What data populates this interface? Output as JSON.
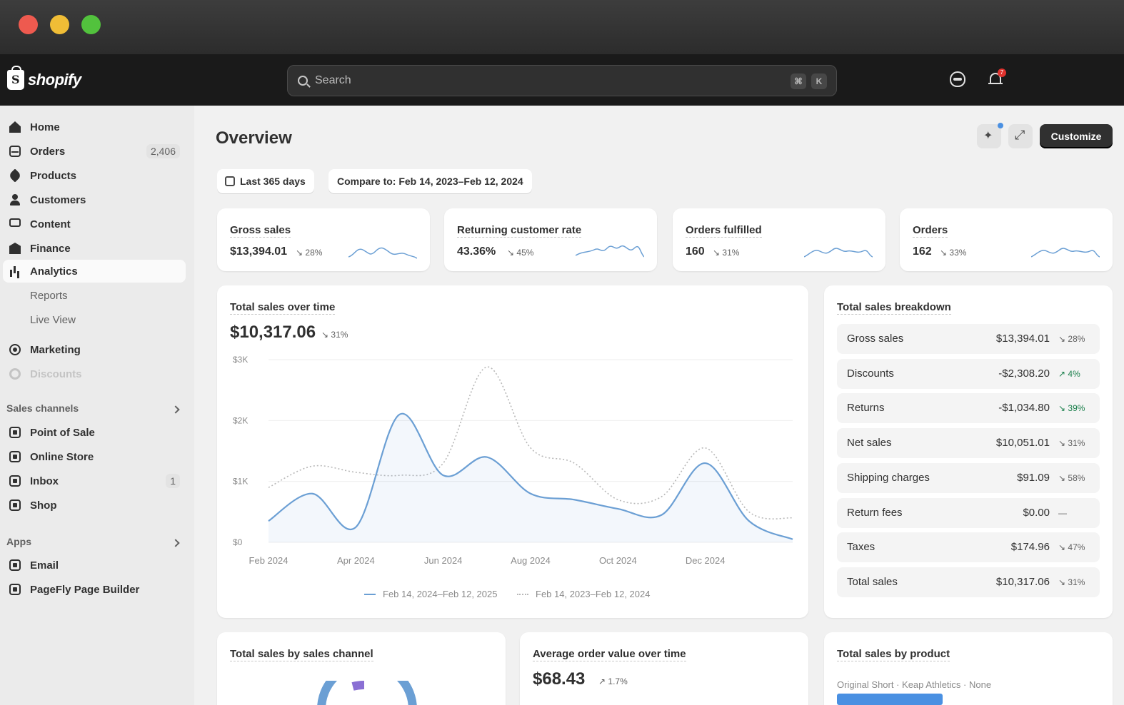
{
  "window": {
    "title": ""
  },
  "topbar": {
    "brand": "shopify",
    "search_placeholder": "Search",
    "shortcut_cmd": "⌘",
    "shortcut_key": "K",
    "notification_count": "7"
  },
  "sidebar": {
    "items": [
      {
        "label": "Home",
        "icon": "home-icon"
      },
      {
        "label": "Orders",
        "icon": "orders-icon",
        "count": "2,406"
      },
      {
        "label": "Products",
        "icon": "tag-icon"
      },
      {
        "label": "Customers",
        "icon": "person-icon"
      },
      {
        "label": "Content",
        "icon": "monitor-icon"
      },
      {
        "label": "Finance",
        "icon": "bank-icon"
      },
      {
        "label": "Analytics",
        "icon": "chart-icon"
      },
      {
        "label": "Reports"
      },
      {
        "label": "Live View"
      },
      {
        "label": "Marketing",
        "icon": "target-icon"
      },
      {
        "label": "Discounts",
        "icon": "gear-icon"
      }
    ],
    "sales_channels_label": "Sales channels",
    "channels": [
      {
        "label": "Point of Sale"
      },
      {
        "label": "Online Store"
      },
      {
        "label": "Inbox",
        "count": "1"
      },
      {
        "label": "Shop"
      }
    ],
    "apps_label": "Apps",
    "apps": [
      {
        "label": "Email"
      },
      {
        "label": "PageFly Page Builder"
      }
    ]
  },
  "main": {
    "title": "Overview",
    "customize_label": "Customize",
    "date_range": "Last 365 days",
    "compare": "Compare to: Feb 14, 2023–Feb 12, 2024",
    "metrics": [
      {
        "title": "Gross sales",
        "value": "$13,394.01",
        "delta": "↘ 28%"
      },
      {
        "title": "Returning customer rate",
        "value": "43.36%",
        "delta": "↘ 45%"
      },
      {
        "title": "Orders fulfilled",
        "value": "160",
        "delta": "↘ 31%"
      },
      {
        "title": "Orders",
        "value": "162",
        "delta": "↘ 33%"
      }
    ],
    "sales_over_time": {
      "title": "Total sales over time",
      "value": "$10,317.06",
      "delta": "↘ 31%",
      "legend_current": "Feb 14, 2024–Feb 12, 2025",
      "legend_previous": "Feb 14, 2023–Feb 12, 2024"
    },
    "breakdown": {
      "title": "Total sales breakdown",
      "rows": [
        {
          "label": "Gross sales",
          "value": "$13,394.01",
          "delta": "↘ 28%",
          "color": "gray"
        },
        {
          "label": "Discounts",
          "value": "-$2,308.20",
          "delta": "↗ 4%",
          "color": "green"
        },
        {
          "label": "Returns",
          "value": "-$1,034.80",
          "delta": "↘ 39%",
          "color": "green"
        },
        {
          "label": "Net sales",
          "value": "$10,051.01",
          "delta": "↘ 31%",
          "color": "gray"
        },
        {
          "label": "Shipping charges",
          "value": "$91.09",
          "delta": "↘ 58%",
          "color": "gray"
        },
        {
          "label": "Return fees",
          "value": "$0.00",
          "delta": "—",
          "color": "gray"
        },
        {
          "label": "Taxes",
          "value": "$174.96",
          "delta": "↘ 47%",
          "color": "gray"
        },
        {
          "label": "Total sales",
          "value": "$10,317.06",
          "delta": "↘ 31%",
          "color": "gray"
        }
      ]
    },
    "by_channel": {
      "title": "Total sales by sales channel"
    },
    "avg_order": {
      "title": "Average order value over time",
      "value": "$68.43",
      "delta": "↗ 1.7%"
    },
    "by_product": {
      "title": "Total sales by product",
      "first_item": "Original Short · Keap Athletics · None"
    }
  },
  "colors": {
    "accent": "#4a90e2",
    "current_series": "#6b9fd4",
    "previous_series": "#b8b8b8"
  },
  "chart_data": {
    "type": "line",
    "title": "Total sales over time",
    "x_ticks": [
      "Feb 2024",
      "Apr 2024",
      "Jun 2024",
      "Aug 2024",
      "Oct 2024",
      "Dec 2024"
    ],
    "y_ticks": [
      "$0",
      "$1K",
      "$2K",
      "$3K"
    ],
    "ylim": [
      0,
      3000
    ],
    "x": [
      "2024-02",
      "2024-03",
      "2024-04",
      "2024-05",
      "2024-06",
      "2024-07",
      "2024-08",
      "2024-09",
      "2024-10",
      "2024-11",
      "2024-12",
      "2025-01",
      "2025-02"
    ],
    "series": [
      {
        "name": "Feb 14, 2024–Feb 12, 2025",
        "style": "solid",
        "values": [
          350,
          800,
          250,
          2100,
          1100,
          1400,
          800,
          700,
          550,
          450,
          1300,
          350,
          50
        ]
      },
      {
        "name": "Feb 14, 2023–Feb 12, 2024",
        "style": "dotted",
        "values": [
          900,
          1250,
          1150,
          1100,
          1300,
          2880,
          1550,
          1300,
          700,
          750,
          1550,
          500,
          400
        ]
      }
    ],
    "grid": true,
    "legend": "bottom"
  }
}
